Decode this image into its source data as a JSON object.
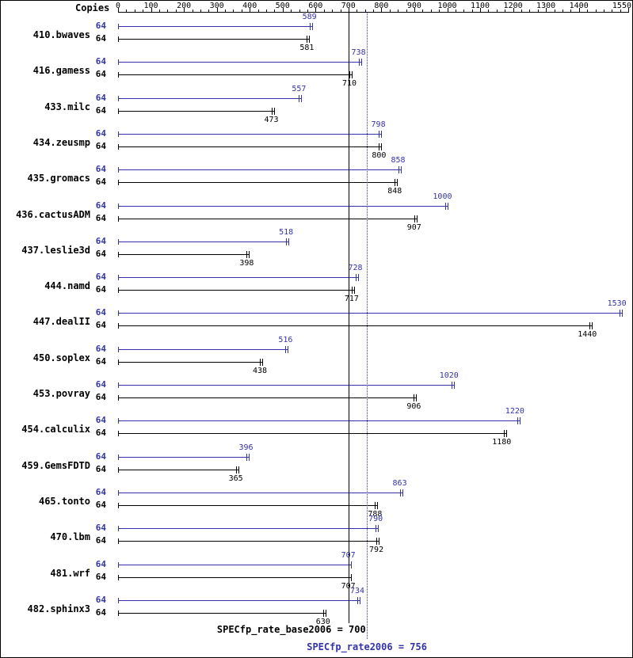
{
  "chart_data": {
    "type": "bar",
    "orientation": "horizontal",
    "copies_header": "Copies",
    "xlim": [
      0,
      1550
    ],
    "axis_ticks": [
      0,
      100,
      200,
      300,
      400,
      500,
      600,
      700,
      800,
      900,
      1000,
      1100,
      1200,
      1300,
      1400,
      1550
    ],
    "minor_tick_step": 25,
    "grid": false,
    "legend": "none",
    "categories": [
      "410.bwaves",
      "416.gamess",
      "433.milc",
      "434.zeusmp",
      "435.gromacs",
      "436.cactusADM",
      "437.leslie3d",
      "444.namd",
      "447.dealII",
      "450.soplex",
      "453.povray",
      "454.calculix",
      "459.GemsFDTD",
      "465.tonto",
      "470.lbm",
      "481.wrf",
      "482.sphinx3"
    ],
    "copies": "64",
    "series": [
      {
        "name": "peak",
        "color": "#3333aa",
        "values": [
          589,
          738,
          557,
          798,
          858,
          1000,
          518,
          728,
          1530,
          516,
          1020,
          1220,
          396,
          863,
          790,
          707,
          734
        ]
      },
      {
        "name": "base",
        "color": "#000000",
        "values": [
          581,
          710,
          473,
          800,
          848,
          907,
          398,
          717,
          1440,
          438,
          906,
          1180,
          365,
          788,
          792,
          707,
          630
        ]
      }
    ],
    "reference_lines": [
      {
        "label": "SPECfp_rate_base2006 = 700",
        "value": 700,
        "style": "solid",
        "color": "#000000"
      },
      {
        "label": "SPECfp_rate2006 = 756",
        "value": 756,
        "style": "dotted",
        "color": "#3333aa"
      }
    ]
  }
}
